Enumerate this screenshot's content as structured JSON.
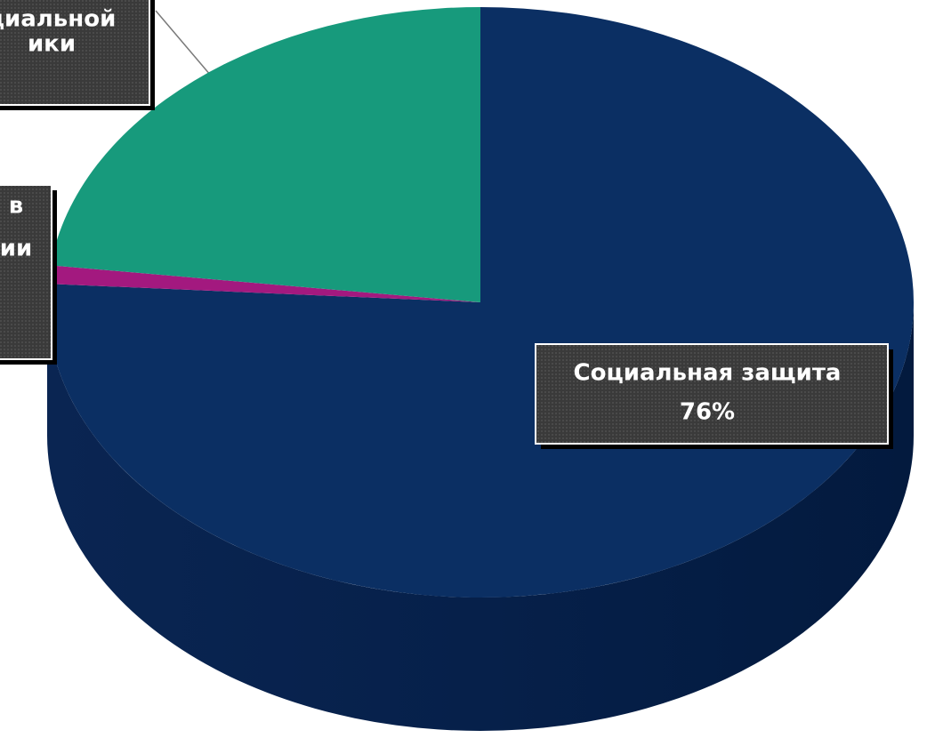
{
  "chart_data": {
    "type": "pie",
    "categories": [
      [
        "Социальная защита"
      ],
      [
        "в",
        "ии"
      ],
      [
        "циальной",
        "ики"
      ]
    ],
    "values": [
      76,
      1,
      23
    ],
    "value_labels": [
      "76%",
      null,
      null
    ],
    "colors": [
      "#0b2f63",
      "#a3197f",
      "#179a7c"
    ]
  }
}
